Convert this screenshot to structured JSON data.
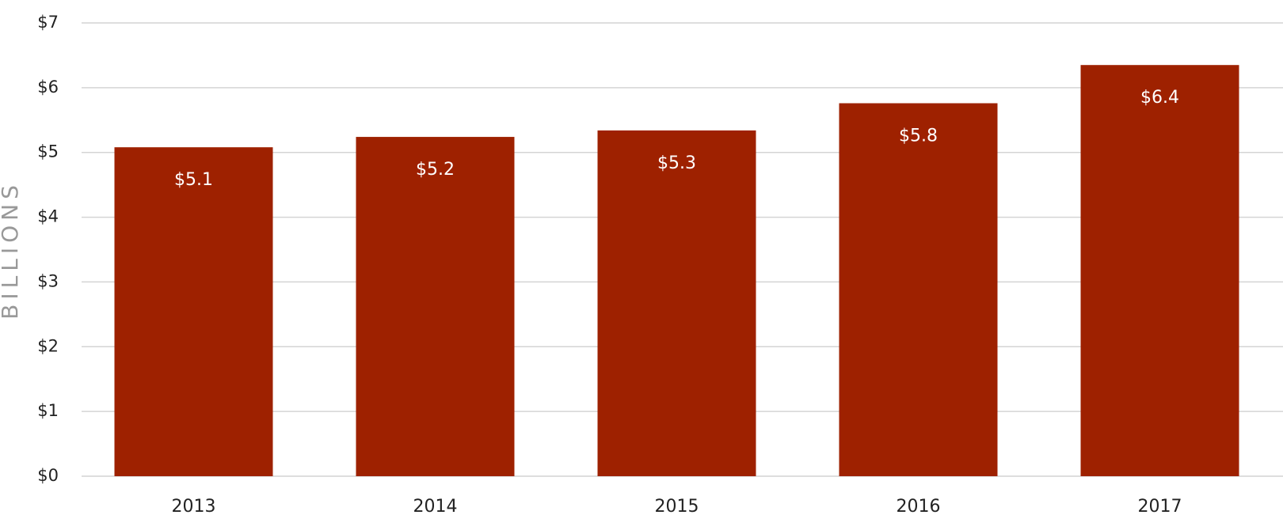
{
  "chart_data": {
    "type": "bar",
    "y_label": "BILLIONS",
    "categories": [
      "2013",
      "2014",
      "2015",
      "2016",
      "2017"
    ],
    "values": [
      5.08,
      5.24,
      5.34,
      5.76,
      6.35
    ],
    "value_labels": [
      "$5.1",
      "$5.2",
      "$5.3",
      "$5.8",
      "$6.4"
    ],
    "color": "#9e2100",
    "ylim": [
      0,
      7
    ],
    "yticks": [
      {
        "value": 0,
        "label": "$0"
      },
      {
        "value": 1,
        "label": "$1"
      },
      {
        "value": 2,
        "label": "$2"
      },
      {
        "value": 3,
        "label": "$3"
      },
      {
        "value": 4,
        "label": "$4"
      },
      {
        "value": 5,
        "label": "$5"
      },
      {
        "value": 6,
        "label": "$6"
      },
      {
        "value": 7,
        "label": "$7"
      }
    ],
    "grid": true
  }
}
